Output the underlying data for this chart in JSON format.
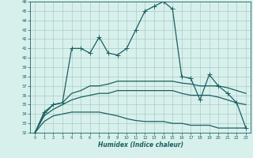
{
  "xlabel": "Humidex (Indice chaleur)",
  "background_color": "#d8f0ec",
  "grid_color": "#a8ccc8",
  "line_color": "#1a6060",
  "xlim": [
    -0.5,
    23.5
  ],
  "ylim": [
    32,
    46
  ],
  "xticks": [
    0,
    1,
    2,
    3,
    4,
    5,
    6,
    7,
    8,
    9,
    10,
    11,
    12,
    13,
    14,
    15,
    16,
    17,
    18,
    19,
    20,
    21,
    22,
    23
  ],
  "yticks": [
    32,
    33,
    34,
    35,
    36,
    37,
    38,
    39,
    40,
    41,
    42,
    43,
    44,
    45,
    46
  ],
  "series": [
    {
      "x": [
        0,
        1,
        2,
        3,
        4,
        5,
        6,
        7,
        8,
        9,
        10,
        11,
        12,
        13,
        14,
        15,
        16,
        17,
        18,
        19,
        20,
        21,
        22,
        23
      ],
      "y": [
        32.0,
        34.2,
        35.0,
        35.2,
        41.0,
        41.0,
        40.5,
        42.2,
        40.5,
        40.3,
        41.0,
        43.0,
        45.0,
        45.5,
        46.0,
        45.2,
        38.0,
        37.8,
        35.5,
        38.2,
        37.0,
        36.2,
        35.2,
        32.5
      ],
      "marker": "+",
      "ms": 4,
      "lw": 0.9
    },
    {
      "x": [
        0,
        1,
        2,
        3,
        4,
        5,
        6,
        7,
        8,
        9,
        10,
        11,
        12,
        13,
        14,
        15,
        16,
        17,
        18,
        19,
        20,
        21,
        22,
        23
      ],
      "y": [
        32.0,
        34.0,
        35.0,
        35.2,
        36.2,
        36.5,
        37.0,
        37.0,
        37.2,
        37.5,
        37.5,
        37.5,
        37.5,
        37.5,
        37.5,
        37.5,
        37.3,
        37.2,
        37.0,
        37.0,
        37.0,
        36.8,
        36.5,
        36.2
      ],
      "marker": null,
      "ms": 0,
      "lw": 0.9
    },
    {
      "x": [
        0,
        1,
        2,
        3,
        4,
        5,
        6,
        7,
        8,
        9,
        10,
        11,
        12,
        13,
        14,
        15,
        16,
        17,
        18,
        19,
        20,
        21,
        22,
        23
      ],
      "y": [
        32.0,
        33.8,
        34.5,
        35.0,
        35.5,
        35.8,
        36.0,
        36.2,
        36.2,
        36.5,
        36.5,
        36.5,
        36.5,
        36.5,
        36.5,
        36.5,
        36.2,
        36.0,
        36.0,
        36.0,
        35.8,
        35.5,
        35.2,
        35.0
      ],
      "marker": null,
      "ms": 0,
      "lw": 0.9
    },
    {
      "x": [
        0,
        1,
        2,
        3,
        4,
        5,
        6,
        7,
        8,
        9,
        10,
        11,
        12,
        13,
        14,
        15,
        16,
        17,
        18,
        19,
        20,
        21,
        22,
        23
      ],
      "y": [
        32.0,
        33.2,
        33.8,
        34.0,
        34.2,
        34.2,
        34.2,
        34.2,
        34.0,
        33.8,
        33.5,
        33.3,
        33.2,
        33.2,
        33.2,
        33.0,
        33.0,
        32.8,
        32.8,
        32.8,
        32.5,
        32.5,
        32.5,
        32.5
      ],
      "marker": null,
      "ms": 0,
      "lw": 0.9
    }
  ]
}
